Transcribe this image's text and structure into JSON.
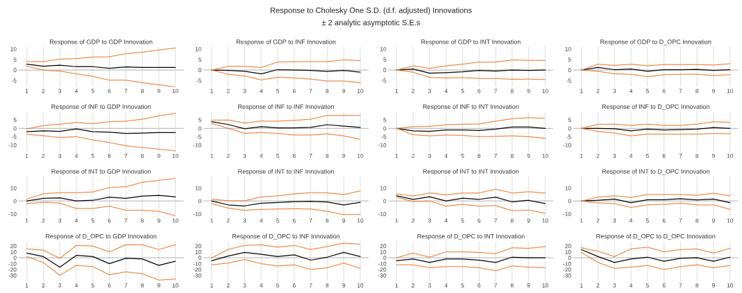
{
  "chart_data": [
    {
      "type": "line",
      "title": "Response of GDP to GDP Innovation",
      "annotations": [
        "Response to Cholesky One S.D. (d.f. adjusted) Innovations",
        "± 2 analytic asymptotic S.E.s"
      ],
      "categories": [
        "1",
        "2",
        "3",
        "4",
        "5",
        "6",
        "7",
        "8",
        "9",
        "10"
      ],
      "ylim": [
        -8,
        11
      ],
      "yticks": [
        -5,
        0,
        5,
        10
      ],
      "grid": "x",
      "ref_lines": [
        {
          "axis": "y",
          "value": 0,
          "color": "#bfbfbf"
        }
      ],
      "series": [
        {
          "color": "#000000",
          "line_style": "solid",
          "values": [
            2.8,
            1.8,
            2.3,
            1.6,
            1.6,
            0.8,
            1.5,
            1.2,
            1.2,
            1.2
          ]
        },
        {
          "color": "#ed7d31",
          "line_style": "dotted",
          "values": [
            4,
            4,
            5.2,
            5.4,
            6.2,
            6.3,
            7.8,
            8.5,
            9.5,
            10.5
          ]
        },
        {
          "color": "#ed7d31",
          "line_style": "dotted",
          "values": [
            1.8,
            0,
            -0.5,
            -1.8,
            -3,
            -4.8,
            -4.8,
            -6,
            -7,
            -8
          ]
        }
      ]
    },
    {
      "type": "line",
      "title": "Response of GDP to INF Innovation",
      "categories": [
        "1",
        "2",
        "3",
        "4",
        "5",
        "6",
        "7",
        "8",
        "9",
        "10"
      ],
      "ylim": [
        -8,
        11
      ],
      "yticks": [
        -5,
        0,
        5,
        10
      ],
      "grid": "x",
      "ref_lines": [
        {
          "axis": "y",
          "value": 0,
          "color": "#bfbfbf"
        }
      ],
      "series": [
        {
          "color": "#000000",
          "line_style": "solid",
          "values": [
            0,
            -0.2,
            -0.6,
            -1.8,
            0.2,
            0,
            -0.2,
            -0.7,
            -0.2,
            -1
          ]
        },
        {
          "color": "#ed7d31",
          "line_style": "dotted",
          "values": [
            0,
            1.8,
            1.8,
            1.2,
            3.8,
            4,
            4,
            4,
            4.8,
            4.5
          ]
        },
        {
          "color": "#ed7d31",
          "line_style": "dotted",
          "values": [
            0,
            -2,
            -2.8,
            -4.7,
            -3.4,
            -3.8,
            -4.3,
            -5.2,
            -5.2,
            -6
          ]
        }
      ]
    },
    {
      "type": "line",
      "title": "Response of GDP to INT Innovation",
      "categories": [
        "1",
        "2",
        "3",
        "4",
        "5",
        "6",
        "7",
        "8",
        "9",
        "10"
      ],
      "ylim": [
        -8,
        11
      ],
      "yticks": [
        -5,
        0,
        5,
        10
      ],
      "grid": "x",
      "ref_lines": [
        {
          "axis": "y",
          "value": 0,
          "color": "#bfbfbf"
        }
      ],
      "series": [
        {
          "color": "#000000",
          "line_style": "solid",
          "values": [
            0,
            0.5,
            -1.5,
            -1.2,
            -0.8,
            -0.2,
            -0.5,
            0,
            -0.2,
            0
          ]
        },
        {
          "color": "#ed7d31",
          "line_style": "dotted",
          "values": [
            0,
            2,
            0.8,
            2,
            2.8,
            3.8,
            3.8,
            4.8,
            4.6,
            4.6
          ]
        },
        {
          "color": "#ed7d31",
          "line_style": "dotted",
          "values": [
            0,
            -1,
            -3.5,
            -3.8,
            -3.6,
            -4,
            -4,
            -4.4,
            -4.3,
            -4.5
          ]
        }
      ]
    },
    {
      "type": "line",
      "title": "Response of GDP to D_OPC Innovation",
      "categories": [
        "1",
        "2",
        "3",
        "4",
        "5",
        "6",
        "7",
        "8",
        "9",
        "10"
      ],
      "ylim": [
        -8,
        11
      ],
      "yticks": [
        -5,
        0,
        5,
        10
      ],
      "grid": "x",
      "ref_lines": [
        {
          "axis": "y",
          "value": 0,
          "color": "#bfbfbf"
        }
      ],
      "series": [
        {
          "color": "#000000",
          "line_style": "solid",
          "values": [
            0,
            1.2,
            0.2,
            0.5,
            -0.6,
            0.2,
            0.2,
            0.3,
            -0.2,
            0.2
          ]
        },
        {
          "color": "#ed7d31",
          "line_style": "dotted",
          "values": [
            0,
            2.8,
            2.2,
            2.8,
            2,
            2.6,
            2.6,
            2.6,
            2.4,
            3
          ]
        },
        {
          "color": "#ed7d31",
          "line_style": "dotted",
          "values": [
            0,
            -0.6,
            -1.8,
            -2,
            -3.2,
            -2.2,
            -2,
            -2,
            -2.6,
            -2.2
          ]
        }
      ]
    },
    {
      "type": "line",
      "title": "Response of INF to GDP Innovation",
      "categories": [
        "1",
        "2",
        "3",
        "4",
        "5",
        "6",
        "7",
        "8",
        "9",
        "10"
      ],
      "ylim": [
        -14,
        10
      ],
      "yticks": [
        -10,
        -5,
        0,
        5
      ],
      "grid": "x",
      "ref_lines": [
        {
          "axis": "y",
          "value": 0,
          "color": "#bfbfbf"
        }
      ],
      "series": [
        {
          "color": "#000000",
          "line_style": "solid",
          "values": [
            -2,
            -1.5,
            -1.8,
            -0.3,
            -2,
            -2.3,
            -3,
            -2.8,
            -2.5,
            -2.5
          ]
        },
        {
          "color": "#ed7d31",
          "line_style": "dotted",
          "values": [
            -0.3,
            1.7,
            2.5,
            3.5,
            2.8,
            4,
            4.3,
            5.5,
            7.5,
            9
          ]
        },
        {
          "color": "#ed7d31",
          "line_style": "dotted",
          "values": [
            -3.6,
            -4.4,
            -5.5,
            -5,
            -7,
            -8.5,
            -10.5,
            -11.5,
            -12.5,
            -13.5
          ]
        }
      ]
    },
    {
      "type": "line",
      "title": "Response of INF to INF Innovation",
      "categories": [
        "1",
        "2",
        "3",
        "4",
        "5",
        "6",
        "7",
        "8",
        "9",
        "10"
      ],
      "ylim": [
        -14,
        10
      ],
      "yticks": [
        -10,
        -5,
        0,
        5
      ],
      "grid": "x",
      "ref_lines": [
        {
          "axis": "y",
          "value": 0,
          "color": "#bfbfbf"
        }
      ],
      "series": [
        {
          "color": "#000000",
          "line_style": "solid",
          "values": [
            4,
            2.3,
            -0.2,
            1,
            0.3,
            0.3,
            0.6,
            2.2,
            1.3,
            0.6
          ]
        },
        {
          "color": "#ed7d31",
          "line_style": "dotted",
          "values": [
            5,
            5,
            3.2,
            4.4,
            4.3,
            4.8,
            5.5,
            7.8,
            7.8,
            7.8
          ]
        },
        {
          "color": "#ed7d31",
          "line_style": "dotted",
          "values": [
            3,
            0,
            -3,
            -2.5,
            -3,
            -4,
            -4,
            -3.3,
            -4.5,
            -6.5
          ]
        }
      ]
    },
    {
      "type": "line",
      "title": "Response of INF to INT Innovation",
      "categories": [
        "1",
        "2",
        "3",
        "4",
        "5",
        "6",
        "7",
        "8",
        "9",
        "10"
      ],
      "ylim": [
        -14,
        10
      ],
      "yticks": [
        -10,
        -5,
        0,
        5
      ],
      "grid": "x",
      "ref_lines": [
        {
          "axis": "y",
          "value": 0,
          "color": "#bfbfbf"
        }
      ],
      "series": [
        {
          "color": "#000000",
          "line_style": "solid",
          "values": [
            0,
            -1.5,
            -1.8,
            -1,
            -1,
            -1.3,
            -0.4,
            0.8,
            0.8,
            0
          ]
        },
        {
          "color": "#ed7d31",
          "line_style": "dotted",
          "values": [
            0,
            1,
            1.2,
            2.2,
            2.5,
            2.6,
            4.3,
            5.8,
            6.4,
            6
          ]
        },
        {
          "color": "#ed7d31",
          "line_style": "dotted",
          "values": [
            0,
            -3.8,
            -4.5,
            -4,
            -4.2,
            -5,
            -4.8,
            -4.5,
            -5,
            -6
          ]
        }
      ]
    },
    {
      "type": "line",
      "title": "Response of INF to D_OPC Innovation",
      "categories": [
        "1",
        "2",
        "3",
        "4",
        "5",
        "6",
        "7",
        "8",
        "9",
        "10"
      ],
      "ylim": [
        -14,
        10
      ],
      "yticks": [
        -10,
        -5,
        0,
        5
      ],
      "grid": "x",
      "ref_lines": [
        {
          "axis": "y",
          "value": 0,
          "color": "#bfbfbf"
        }
      ],
      "series": [
        {
          "color": "#000000",
          "line_style": "solid",
          "values": [
            0,
            0,
            -0.2,
            -1.5,
            -0.5,
            -1,
            -0.8,
            -0.5,
            0.5,
            0
          ]
        },
        {
          "color": "#ed7d31",
          "line_style": "dotted",
          "values": [
            0,
            2.5,
            2.5,
            1.8,
            2.5,
            1.8,
            1.8,
            2.5,
            4,
            3.6
          ]
        },
        {
          "color": "#ed7d31",
          "line_style": "dotted",
          "values": [
            0,
            -1.8,
            -2.8,
            -4.5,
            -3.5,
            -3.5,
            -3.5,
            -3.5,
            -3,
            -3.2
          ]
        }
      ]
    },
    {
      "type": "line",
      "title": "Response of INT to GDP Innovation",
      "categories": [
        "1",
        "2",
        "3",
        "4",
        "5",
        "6",
        "7",
        "8",
        "9",
        "10"
      ],
      "ylim": [
        -12,
        19
      ],
      "yticks": [
        -10,
        0,
        10
      ],
      "grid": "x",
      "ref_lines": [
        {
          "axis": "y",
          "value": 0,
          "color": "#bfbfbf"
        }
      ],
      "series": [
        {
          "color": "#000000",
          "line_style": "solid",
          "values": [
            0,
            2,
            2.5,
            0,
            0.5,
            3,
            2,
            3.8,
            4.3,
            3.2
          ]
        },
        {
          "color": "#ed7d31",
          "line_style": "dotted",
          "values": [
            1.5,
            5.5,
            6.5,
            6.5,
            7,
            10.5,
            11,
            14.5,
            16,
            17.5
          ]
        },
        {
          "color": "#ed7d31",
          "line_style": "dotted",
          "values": [
            -2,
            -1,
            -1.7,
            -5.8,
            -5.8,
            -4,
            -7.2,
            -7.2,
            -8,
            -11.5
          ]
        }
      ]
    },
    {
      "type": "line",
      "title": "Response of INT to INF Innovation",
      "categories": [
        "1",
        "2",
        "3",
        "4",
        "5",
        "6",
        "7",
        "8",
        "9",
        "10"
      ],
      "ylim": [
        -12,
        19
      ],
      "yticks": [
        -10,
        0,
        10
      ],
      "grid": "x",
      "ref_lines": [
        {
          "axis": "y",
          "value": 0,
          "color": "#bfbfbf"
        }
      ],
      "series": [
        {
          "color": "#000000",
          "line_style": "solid",
          "values": [
            0,
            -3,
            -3.8,
            -1.7,
            -1.2,
            -0.5,
            -0.3,
            -0.8,
            -3,
            -1
          ]
        },
        {
          "color": "#ed7d31",
          "line_style": "dotted",
          "values": [
            1.5,
            0.2,
            0.2,
            3.2,
            4,
            5.5,
            6.5,
            6.3,
            5,
            7.8
          ]
        },
        {
          "color": "#ed7d31",
          "line_style": "dotted",
          "values": [
            -2,
            -5.5,
            -7.2,
            -6.5,
            -6.2,
            -6,
            -6.2,
            -8,
            -10.5,
            -10.5
          ]
        }
      ]
    },
    {
      "type": "line",
      "title": "Response of INT to INT Innovation",
      "categories": [
        "1",
        "2",
        "3",
        "4",
        "5",
        "6",
        "7",
        "8",
        "9",
        "10"
      ],
      "ylim": [
        -12,
        19
      ],
      "yticks": [
        -10,
        0,
        10
      ],
      "grid": "x",
      "ref_lines": [
        {
          "axis": "y",
          "value": 0,
          "color": "#bfbfbf"
        }
      ],
      "series": [
        {
          "color": "#000000",
          "line_style": "solid",
          "values": [
            4,
            1.2,
            3.2,
            0,
            2.2,
            1.3,
            3,
            -0.7,
            0.5,
            -2
          ]
        },
        {
          "color": "#ed7d31",
          "line_style": "dotted",
          "values": [
            5.5,
            3.8,
            6.2,
            4.8,
            6.2,
            6.2,
            9.2,
            6.2,
            7.2,
            6.2
          ]
        },
        {
          "color": "#ed7d31",
          "line_style": "dotted",
          "values": [
            3,
            -0.5,
            0,
            -4,
            -2.5,
            -4,
            -3.5,
            -7.5,
            -7,
            -9.5
          ]
        }
      ]
    },
    {
      "type": "line",
      "title": "Response of INT to D_OPC Innovation",
      "categories": [
        "1",
        "2",
        "3",
        "4",
        "5",
        "6",
        "7",
        "8",
        "9",
        "10"
      ],
      "ylim": [
        -12,
        19
      ],
      "yticks": [
        -10,
        0,
        10
      ],
      "grid": "x",
      "ref_lines": [
        {
          "axis": "y",
          "value": 0,
          "color": "#bfbfbf"
        }
      ],
      "series": [
        {
          "color": "#000000",
          "line_style": "solid",
          "values": [
            0,
            0.5,
            1.5,
            -1.3,
            1,
            1,
            1.8,
            0.8,
            1.5,
            -1.3
          ]
        },
        {
          "color": "#ed7d31",
          "line_style": "dotted",
          "values": [
            0,
            3,
            4,
            2.8,
            5,
            5,
            5,
            4.5,
            6,
            4
          ]
        },
        {
          "color": "#ed7d31",
          "line_style": "dotted",
          "values": [
            0,
            -1.5,
            -2,
            -5,
            -3,
            -2.5,
            -1.7,
            -3,
            -3,
            -6.5
          ]
        }
      ]
    },
    {
      "type": "line",
      "title": "Response of D_OPC to GDP Innovation",
      "categories": [
        "1",
        "2",
        "3",
        "4",
        "5",
        "6",
        "7",
        "8",
        "9",
        "10"
      ],
      "ylim": [
        -40,
        28
      ],
      "yticks": [
        -30,
        -20,
        -10,
        0,
        10,
        20
      ],
      "grid": "x",
      "ref_lines": [
        {
          "axis": "y",
          "value": 0,
          "color": "#bfbfbf"
        }
      ],
      "series": [
        {
          "color": "#000000",
          "line_style": "solid",
          "values": [
            8,
            2,
            -16,
            4,
            2,
            -10,
            -1,
            -2,
            -13,
            -6
          ]
        },
        {
          "color": "#ed7d31",
          "line_style": "dotted",
          "values": [
            15,
            13,
            -1,
            21,
            20,
            10,
            22,
            22,
            14,
            22
          ]
        },
        {
          "color": "#ed7d31",
          "line_style": "dotted",
          "values": [
            2,
            -8,
            -30,
            -13,
            -15,
            -29,
            -24,
            -27,
            -38,
            -36
          ]
        }
      ]
    },
    {
      "type": "line",
      "title": "Response of D_OPC to INF Innovation",
      "categories": [
        "1",
        "2",
        "3",
        "4",
        "5",
        "6",
        "7",
        "8",
        "9",
        "10"
      ],
      "ylim": [
        -40,
        28
      ],
      "yticks": [
        -30,
        -20,
        -10,
        0,
        10,
        20
      ],
      "grid": "x",
      "ref_lines": [
        {
          "axis": "y",
          "value": 0,
          "color": "#bfbfbf"
        }
      ],
      "series": [
        {
          "color": "#000000",
          "line_style": "solid",
          "values": [
            -5,
            3,
            9,
            6,
            2,
            5,
            -4,
            1,
            9,
            2
          ]
        },
        {
          "color": "#ed7d31",
          "line_style": "dotted",
          "values": [
            0,
            14,
            21,
            22,
            18,
            21,
            14,
            19,
            25,
            23
          ]
        },
        {
          "color": "#ed7d31",
          "line_style": "dotted",
          "values": [
            -12,
            -9,
            -3,
            -10,
            -14,
            -12,
            -20,
            -17,
            -9,
            -18
          ]
        }
      ]
    },
    {
      "type": "line",
      "title": "Response of D_OPC to INT Innovation",
      "categories": [
        "1",
        "2",
        "3",
        "4",
        "5",
        "6",
        "7",
        "8",
        "9",
        "10"
      ],
      "ylim": [
        -40,
        28
      ],
      "yticks": [
        -30,
        -20,
        -10,
        0,
        10,
        20
      ],
      "grid": "x",
      "ref_lines": [
        {
          "axis": "y",
          "value": 0,
          "color": "#bfbfbf"
        }
      ],
      "series": [
        {
          "color": "#000000",
          "line_style": "solid",
          "values": [
            -5,
            -2,
            -8,
            -2,
            -2,
            -4,
            -8,
            1,
            0,
            0
          ]
        },
        {
          "color": "#ed7d31",
          "line_style": "dotted",
          "values": [
            0,
            8,
            1,
            10,
            10,
            9,
            7,
            17,
            16,
            19
          ]
        },
        {
          "color": "#ed7d31",
          "line_style": "dotted",
          "values": [
            -12,
            -12,
            -17,
            -15,
            -15,
            -17,
            -22,
            -14,
            -16,
            -17
          ]
        }
      ]
    },
    {
      "type": "line",
      "title": "Response of D_OPC to D_OPC Innovation",
      "categories": [
        "1",
        "2",
        "3",
        "4",
        "5",
        "6",
        "7",
        "8",
        "9",
        "10"
      ],
      "ylim": [
        -40,
        28
      ],
      "yticks": [
        -30,
        -20,
        -10,
        0,
        10,
        20
      ],
      "grid": "x",
      "ref_lines": [
        {
          "axis": "y",
          "value": 0,
          "color": "#bfbfbf"
        }
      ],
      "series": [
        {
          "color": "#000000",
          "line_style": "solid",
          "values": [
            14,
            2,
            -8,
            -2,
            1,
            -6,
            -1,
            0,
            -6,
            1
          ]
        },
        {
          "color": "#ed7d31",
          "line_style": "dotted",
          "values": [
            17,
            11,
            2,
            15,
            18,
            10,
            14,
            15,
            8,
            16
          ]
        },
        {
          "color": "#ed7d31",
          "line_style": "dotted",
          "values": [
            9,
            -8,
            -18,
            -16,
            -13,
            -20,
            -15,
            -12,
            -17,
            -13
          ]
        }
      ]
    }
  ]
}
